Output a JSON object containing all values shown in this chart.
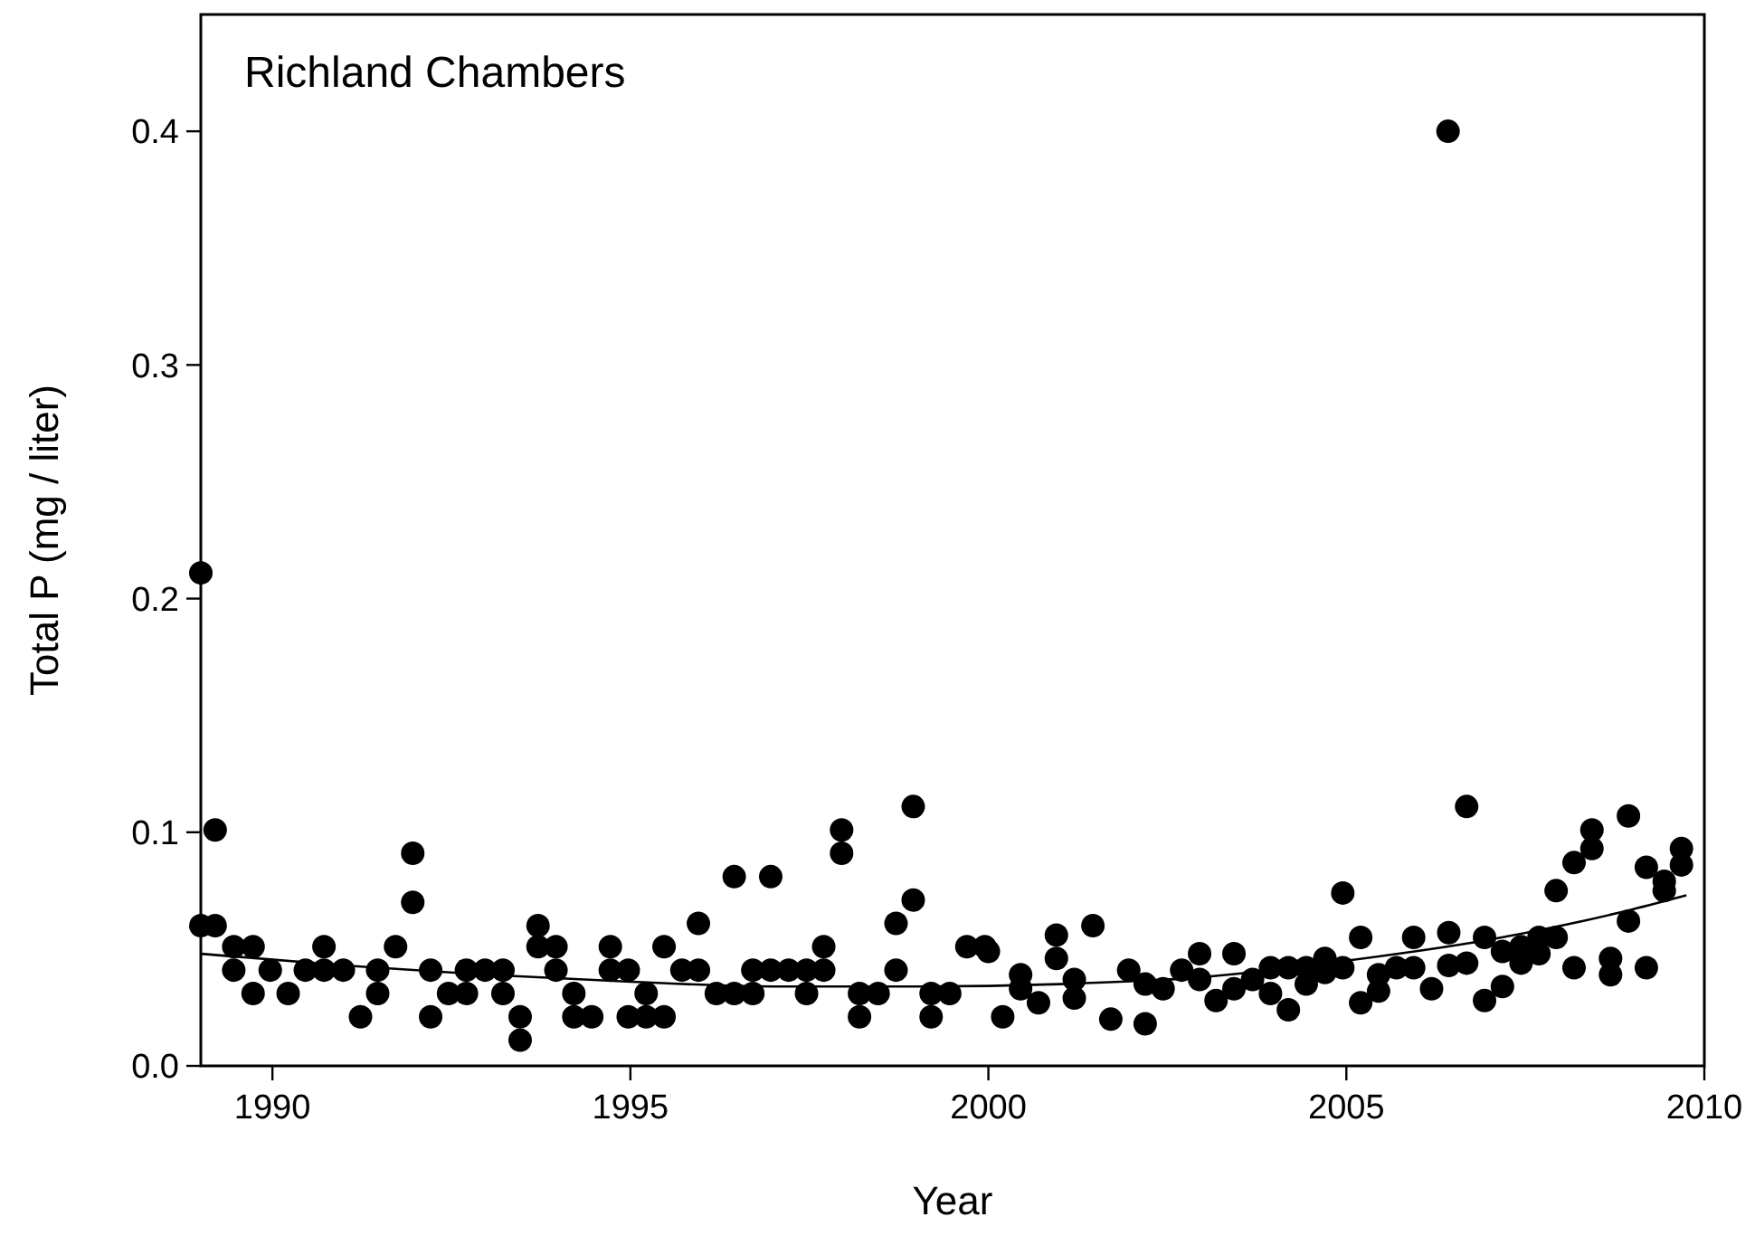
{
  "chart_data": {
    "type": "scatter",
    "title": "Richland Chambers",
    "xlabel": "Year",
    "ylabel": "Total P (mg / liter)",
    "xlim": [
      1989,
      2010
    ],
    "xticks": [
      1990,
      1995,
      2000,
      2005,
      2010
    ],
    "ylim": [
      0,
      0.45
    ],
    "yticks": [
      {
        "value": 0,
        "label": "0.0"
      },
      {
        "value": 0.1,
        "label": "0.1"
      },
      {
        "value": 0.2,
        "label": "0.2"
      },
      {
        "value": 0.3,
        "label": "0.3"
      },
      {
        "value": 0.4,
        "label": "0.4"
      }
    ],
    "grid": false,
    "series": [
      {
        "color": "#000000",
        "marker": "circle",
        "x": [
          1989.0,
          1989.0,
          1989.2,
          1989.2,
          1989.46,
          1989.46,
          1989.73,
          1989.73,
          1989.97,
          1990.22,
          1990.46,
          1990.72,
          1990.72,
          1990.99,
          1991.23,
          1991.47,
          1991.47,
          1991.72,
          1991.96,
          1991.96,
          1992.21,
          1992.21,
          1992.46,
          1992.71,
          1992.71,
          1992.97,
          1993.22,
          1993.22,
          1993.46,
          1993.46,
          1993.71,
          1993.71,
          1993.96,
          1993.96,
          1994.21,
          1994.21,
          1994.46,
          1994.72,
          1994.72,
          1994.97,
          1994.97,
          1995.22,
          1995.22,
          1995.47,
          1995.47,
          1995.72,
          1995.95,
          1995.95,
          1996.2,
          1996.45,
          1996.45,
          1996.71,
          1996.71,
          1996.96,
          1996.96,
          1997.21,
          1997.46,
          1997.46,
          1997.7,
          1997.7,
          1997.95,
          1997.95,
          1998.2,
          1998.2,
          1998.46,
          1998.71,
          1998.71,
          1998.95,
          1998.95,
          1999.2,
          1999.2,
          1999.46,
          1999.7,
          1999.95,
          2000.0,
          2000.2,
          2000.45,
          2000.45,
          2000.7,
          2000.95,
          2000.95,
          2001.2,
          2001.2,
          2001.46,
          2001.71,
          2001.96,
          2002.19,
          2002.19,
          2002.44,
          2002.7,
          2002.95,
          2002.95,
          2003.18,
          2003.43,
          2003.43,
          2003.69,
          2003.94,
          2003.94,
          2004.19,
          2004.19,
          2004.44,
          2004.44,
          2004.7,
          2004.7,
          2004.95,
          2004.95,
          2005.2,
          2005.2,
          2005.45,
          2005.45,
          2005.7,
          2005.94,
          2005.94,
          2006.19,
          2006.42,
          2006.43,
          2006.43,
          2006.68,
          2006.68,
          2006.93,
          2006.93,
          2007.18,
          2007.18,
          2007.44,
          2007.44,
          2007.69,
          2007.69,
          2007.93,
          2007.93,
          2008.18,
          2008.18,
          2008.43,
          2008.43,
          2008.69,
          2008.69,
          2008.94,
          2008.94,
          2009.19,
          2009.19,
          2009.44,
          2009.44,
          2009.68,
          2009.68
        ],
        "values": [
          0.211,
          0.06,
          0.101,
          0.06,
          0.051,
          0.041,
          0.051,
          0.031,
          0.041,
          0.031,
          0.041,
          0.051,
          0.041,
          0.041,
          0.021,
          0.041,
          0.031,
          0.051,
          0.091,
          0.07,
          0.041,
          0.021,
          0.031,
          0.041,
          0.031,
          0.041,
          0.041,
          0.031,
          0.021,
          0.011,
          0.06,
          0.051,
          0.051,
          0.041,
          0.031,
          0.021,
          0.021,
          0.051,
          0.041,
          0.041,
          0.021,
          0.031,
          0.021,
          0.051,
          0.021,
          0.041,
          0.061,
          0.041,
          0.031,
          0.031,
          0.081,
          0.041,
          0.031,
          0.081,
          0.041,
          0.041,
          0.041,
          0.031,
          0.051,
          0.041,
          0.101,
          0.091,
          0.031,
          0.021,
          0.031,
          0.061,
          0.041,
          0.111,
          0.071,
          0.031,
          0.021,
          0.031,
          0.051,
          0.051,
          0.049,
          0.021,
          0.039,
          0.033,
          0.027,
          0.056,
          0.046,
          0.037,
          0.029,
          0.06,
          0.02,
          0.041,
          0.035,
          0.018,
          0.033,
          0.041,
          0.048,
          0.037,
          0.028,
          0.048,
          0.033,
          0.037,
          0.042,
          0.031,
          0.024,
          0.042,
          0.042,
          0.035,
          0.046,
          0.04,
          0.074,
          0.042,
          0.055,
          0.027,
          0.032,
          0.039,
          0.042,
          0.055,
          0.042,
          0.033,
          0.4,
          0.057,
          0.043,
          0.111,
          0.044,
          0.055,
          0.028,
          0.049,
          0.034,
          0.051,
          0.044,
          0.055,
          0.048,
          0.055,
          0.075,
          0.087,
          0.042,
          0.101,
          0.093,
          0.046,
          0.039,
          0.107,
          0.062,
          0.085,
          0.042,
          0.079,
          0.075,
          0.093,
          0.086
        ]
      },
      {
        "type": "line",
        "color": "#000000",
        "line_style": "solid",
        "x": [
          1989,
          1991,
          1993,
          1995,
          1997,
          1999,
          2001,
          2003,
          2005,
          2007,
          2008,
          2009,
          2009.75
        ],
        "values": [
          0.048,
          0.043,
          0.039,
          0.036,
          0.034,
          0.034,
          0.035,
          0.038,
          0.045,
          0.054,
          0.06,
          0.067,
          0.073
        ]
      }
    ]
  }
}
